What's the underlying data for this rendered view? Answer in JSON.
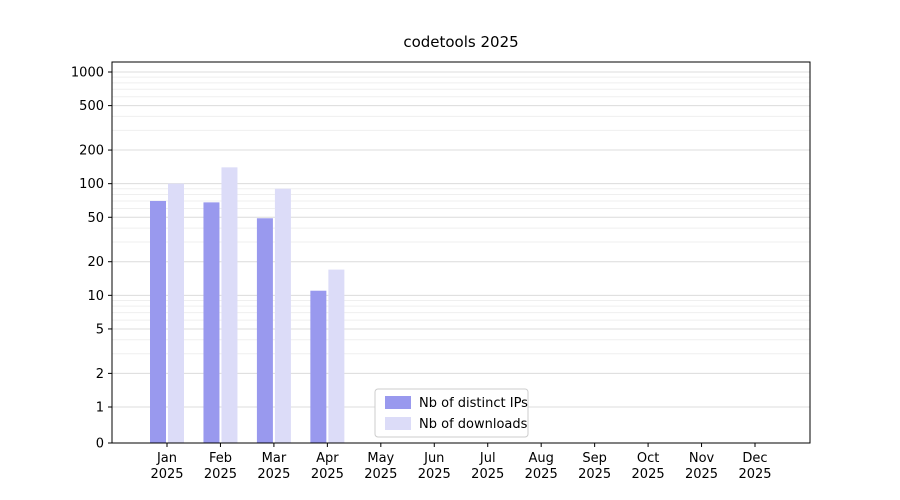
{
  "chart_data": {
    "type": "bar",
    "title": "codetools 2025",
    "categories": [
      "Jan 2025",
      "Feb 2025",
      "Mar 2025",
      "Apr 2025",
      "May 2025",
      "Jun 2025",
      "Jul 2025",
      "Aug 2025",
      "Sep 2025",
      "Oct 2025",
      "Nov 2025",
      "Dec 2025"
    ],
    "series": [
      {
        "name": "Nb of distinct IPs",
        "color": "#9999ee",
        "values": [
          70,
          68,
          49,
          11,
          0,
          0,
          0,
          0,
          0,
          0,
          0,
          0
        ]
      },
      {
        "name": "Nb of downloads",
        "color": "#dcdcf8",
        "values": [
          100,
          140,
          90,
          17,
          0,
          0,
          0,
          0,
          0,
          0,
          0,
          0
        ]
      }
    ],
    "yscale": "symlog",
    "yticks": [
      0,
      1,
      2,
      5,
      10,
      20,
      50,
      100,
      200,
      500,
      1000
    ],
    "ylim": [
      0,
      1000
    ],
    "xlabel": "",
    "ylabel": "",
    "grid": "horizontal",
    "legend_position": "lower-center-inside",
    "colors": {
      "axis": "#000000",
      "grid_major": "#dcdcdc",
      "grid_minor": "#efefef",
      "legend_border": "#cccccc",
      "background": "#ffffff"
    }
  }
}
